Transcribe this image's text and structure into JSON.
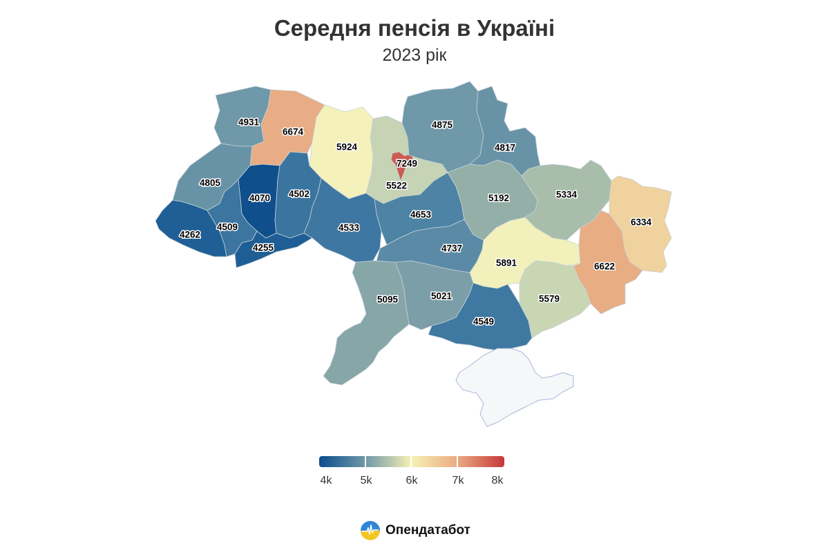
{
  "header": {
    "title": "Середня пенсія в Україні",
    "subtitle": "2023 рік"
  },
  "brand": {
    "name": "Опендатабот",
    "logo_icon": "opendatabot-logo-icon"
  },
  "legend": {
    "labels": [
      "4k",
      "5k",
      "6k",
      "7k",
      "8k"
    ],
    "colors": [
      "#0c4d8e",
      "#6f98a8",
      "#f7f1b3",
      "#eaa982",
      "#c7373a"
    ]
  },
  "regions": [
    {
      "name": "Волинська",
      "value": "4931",
      "color": "#6f98a8"
    },
    {
      "name": "Рівненська",
      "value": "6674",
      "color": "#e8ad84"
    },
    {
      "name": "Житомирська",
      "value": "5924",
      "color": "#f5f1bb"
    },
    {
      "name": "Київська",
      "value": "5522",
      "color": "#c6d3b5"
    },
    {
      "name": "м. Київ",
      "value": "7249",
      "color": "#cb5c52"
    },
    {
      "name": "Чернігівська",
      "value": "4875",
      "color": "#6f99a9"
    },
    {
      "name": "Сумська",
      "value": "4817",
      "color": "#6893a7"
    },
    {
      "name": "Львівська",
      "value": "4805",
      "color": "#6893a7"
    },
    {
      "name": "Тернопільська",
      "value": "4070",
      "color": "#0f4f8c"
    },
    {
      "name": "Хмельницька",
      "value": "4502",
      "color": "#3a75a0"
    },
    {
      "name": "Закарпатська",
      "value": "4262",
      "color": "#1f5f96"
    },
    {
      "name": "Івано-Франківська",
      "value": "4509",
      "color": "#3b75a0"
    },
    {
      "name": "Чернівецька",
      "value": "4255",
      "color": "#1e5e95"
    },
    {
      "name": "Вінницька",
      "value": "4533",
      "color": "#3e77a1"
    },
    {
      "name": "Черкаська",
      "value": "4653",
      "color": "#4d83a4"
    },
    {
      "name": "Полтавська",
      "value": "5192",
      "color": "#93afa8"
    },
    {
      "name": "Харківська",
      "value": "5334",
      "color": "#a8beab"
    },
    {
      "name": "Луганська",
      "value": "6334",
      "color": "#f0d29e"
    },
    {
      "name": "Кіровоградська",
      "value": "4737",
      "color": "#5a8aa6"
    },
    {
      "name": "Дніпропетровська",
      "value": "5891",
      "color": "#f2f1bb"
    },
    {
      "name": "Донецька",
      "value": "6622",
      "color": "#e8ad82"
    },
    {
      "name": "Одеська",
      "value": "5095",
      "color": "#86a6a8"
    },
    {
      "name": "Миколаївська",
      "value": "5021",
      "color": "#7c9ea8"
    },
    {
      "name": "Херсонська",
      "value": "4549",
      "color": "#3f78a1"
    },
    {
      "name": "Запорізька",
      "value": "5579",
      "color": "#c9d6b4"
    },
    {
      "name": "АР Крим",
      "value": "",
      "color": "#f6f7f9"
    }
  ]
}
